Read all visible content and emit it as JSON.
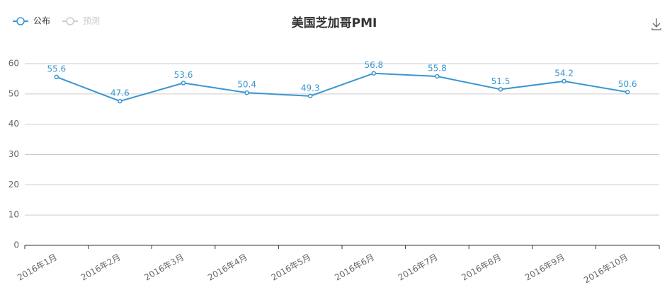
{
  "chart_data": {
    "type": "line",
    "title": "美国芝加哥PMI",
    "categories": [
      "2016年1月",
      "2016年2月",
      "2016年3月",
      "2016年4月",
      "2016年5月",
      "2016年6月",
      "2016年7月",
      "2016年8月",
      "2016年9月",
      "2016年10月"
    ],
    "series": [
      {
        "name": "公布",
        "color": "#3a96d0",
        "values": [
          55.6,
          47.6,
          53.6,
          50.4,
          49.3,
          56.8,
          55.8,
          51.5,
          54.2,
          50.6
        ]
      },
      {
        "name": "预测",
        "color": "#cccccc",
        "values": [
          null,
          null,
          null,
          null,
          null,
          null,
          null,
          null,
          null,
          null
        ]
      }
    ],
    "ylim": [
      0,
      60
    ],
    "yticks": [
      0,
      10,
      20,
      30,
      40,
      50,
      60
    ],
    "grid": true
  }
}
